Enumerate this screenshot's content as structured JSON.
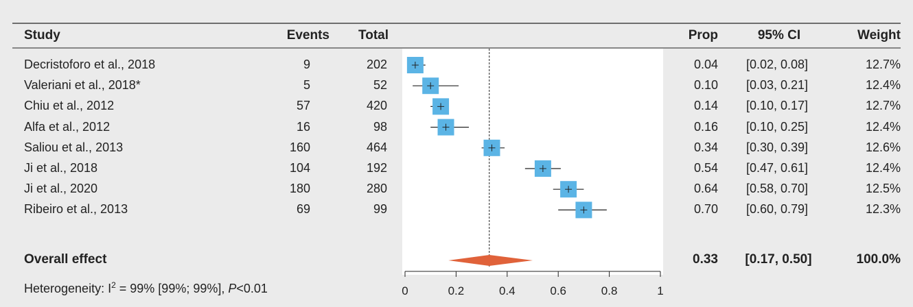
{
  "headers": {
    "study": "Study",
    "events": "Events",
    "total": "Total",
    "prop": "Prop",
    "ci": "95% CI",
    "weight": "Weight"
  },
  "studies": [
    {
      "name": "Decristoforo et al., 2018",
      "events": "9",
      "total": "202",
      "prop": "0.04",
      "ci": "[0.02, 0.08]",
      "weight": "12.7%"
    },
    {
      "name": "Valeriani et al., 2018*",
      "events": "5",
      "total": "52",
      "prop": "0.10",
      "ci": "[0.03, 0.21]",
      "weight": "12.4%"
    },
    {
      "name": "Chiu et al., 2012",
      "events": "57",
      "total": "420",
      "prop": "0.14",
      "ci": "[0.10, 0.17]",
      "weight": "12.7%"
    },
    {
      "name": "Alfa et al., 2012",
      "events": "16",
      "total": "98",
      "prop": "0.16",
      "ci": "[0.10, 0.25]",
      "weight": "12.4%"
    },
    {
      "name": "Saliou et al., 2013",
      "events": "160",
      "total": "464",
      "prop": "0.34",
      "ci": "[0.30, 0.39]",
      "weight": "12.6%"
    },
    {
      "name": "Ji et al., 2018",
      "events": "104",
      "total": "192",
      "prop": "0.54",
      "ci": "[0.47, 0.61]",
      "weight": "12.4%"
    },
    {
      "name": "Ji et al., 2020",
      "events": "180",
      "total": "280",
      "prop": "0.64",
      "ci": "[0.58, 0.70]",
      "weight": "12.5%"
    },
    {
      "name": "Ribeiro et al., 2013",
      "events": "69",
      "total": "99",
      "prop": "0.70",
      "ci": "[0.60, 0.79]",
      "weight": "12.3%"
    }
  ],
  "overall": {
    "label": "Overall effect",
    "prop": "0.33",
    "ci": "[0.17, 0.50]",
    "weight": "100.0%"
  },
  "heterogeneity": {
    "text_prefix": "Heterogeneity: I",
    "superscript": "2",
    "text_middle": " = 99% [99%; 99%], ",
    "p_symbol": "P",
    "text_suffix": "<0.01"
  },
  "colors": {
    "square": "#5bb4e5",
    "diamond": "#e0623a",
    "background": "#ebebeb",
    "plot_bg": "#ffffff"
  },
  "chart_data": {
    "type": "forest",
    "xlim": [
      0,
      1
    ],
    "xticks": [
      "0",
      "0.2",
      "0.4",
      "0.6",
      "0.8",
      "1"
    ],
    "reference_line": 0.33,
    "points": [
      {
        "prop": 0.04,
        "lower": 0.02,
        "upper": 0.08,
        "weight": 12.7
      },
      {
        "prop": 0.1,
        "lower": 0.03,
        "upper": 0.21,
        "weight": 12.4
      },
      {
        "prop": 0.14,
        "lower": 0.1,
        "upper": 0.17,
        "weight": 12.7
      },
      {
        "prop": 0.16,
        "lower": 0.1,
        "upper": 0.25,
        "weight": 12.4
      },
      {
        "prop": 0.34,
        "lower": 0.3,
        "upper": 0.39,
        "weight": 12.6
      },
      {
        "prop": 0.54,
        "lower": 0.47,
        "upper": 0.61,
        "weight": 12.4
      },
      {
        "prop": 0.64,
        "lower": 0.58,
        "upper": 0.7,
        "weight": 12.5
      },
      {
        "prop": 0.7,
        "lower": 0.6,
        "upper": 0.79,
        "weight": 12.3
      }
    ],
    "overall": {
      "prop": 0.33,
      "lower": 0.17,
      "upper": 0.5
    }
  }
}
